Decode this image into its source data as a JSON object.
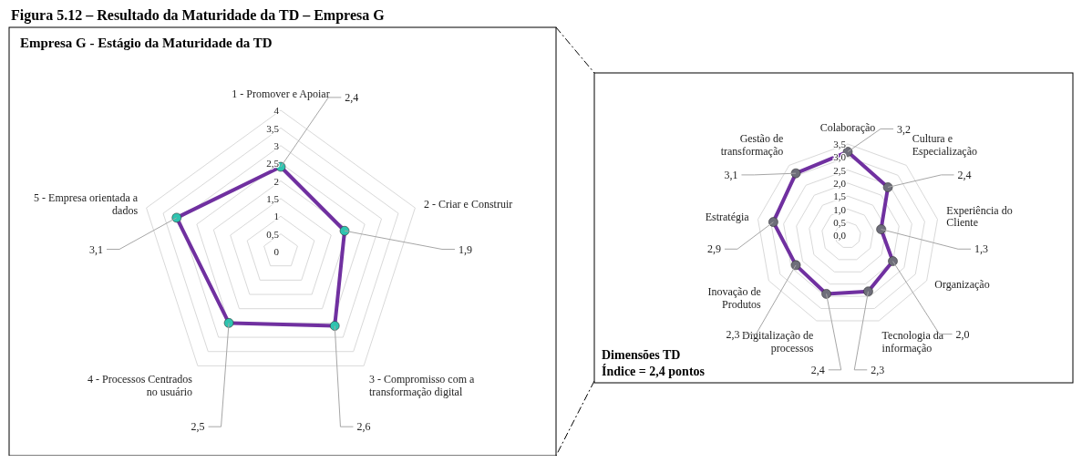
{
  "chart_data": [
    {
      "type": "radar",
      "title": "Empresa G - Estágio da Maturidade da TD",
      "annotations": [
        "Figura 5.12 – Resultado da Maturidade da TD – Empresa G"
      ],
      "categories": [
        "1 - Promover e Apoiar",
        "2 - Criar e Construir",
        "3 - Compromisso com a transformação digital",
        "4 - Processos Centrados no usuário",
        "5 - Empresa orientada a dados"
      ],
      "series": [
        {
          "color": "#7030a0",
          "colors": [
            "#2ec4b0",
            "#2ec4b0",
            "#2ec4b0",
            "#2ec4b0",
            "#2ec4b0"
          ],
          "values": [
            2.4,
            1.9,
            2.6,
            2.5,
            3.1
          ],
          "value_labels": [
            "2,4",
            "1,9",
            "2,6",
            "2,5",
            "3,1"
          ]
        }
      ],
      "ylim": [
        0,
        4
      ],
      "yticks": [
        {
          "value": 0,
          "label": "0"
        },
        {
          "value": 0.5,
          "label": "0,5"
        },
        {
          "value": 1,
          "label": "1"
        },
        {
          "value": 1.5,
          "label": "1,5"
        },
        {
          "value": 2,
          "label": "2"
        },
        {
          "value": 2.5,
          "label": "2,5"
        },
        {
          "value": 3,
          "label": "3"
        },
        {
          "value": 3.5,
          "label": "3,5"
        },
        {
          "value": 4,
          "label": "4"
        }
      ],
      "grid": true,
      "marker": "circle"
    },
    {
      "type": "radar",
      "annotations": [
        "Dimensões TD",
        "Índice = 2,4 pontos"
      ],
      "categories": [
        "Colaboração",
        "Cultura e Especialização",
        "Experiência do Cliente",
        "Organização",
        "Tecnologia da informação",
        "Digitalização de processos",
        "Inovação de Produtos",
        "Estratégia",
        "Gestão de transformação"
      ],
      "series": [
        {
          "color": "#7030a0",
          "colors": [
            "#6e6e7a",
            "#6e6e7a",
            "#6e6e7a",
            "#6e6e7a",
            "#6e6e7a",
            "#6e6e7a",
            "#6e6e7a",
            "#6e6e7a",
            "#6e6e7a"
          ],
          "values": [
            3.2,
            2.4,
            1.3,
            2.0,
            2.3,
            2.4,
            2.3,
            2.9,
            3.1
          ],
          "value_labels": [
            "3,2",
            "2,4",
            "1,3",
            "2,0",
            "2,3",
            "2,4",
            "2,3",
            "2,9",
            "3,1"
          ]
        }
      ],
      "ylim": [
        0,
        3.5
      ],
      "yticks": [
        {
          "value": 0,
          "label": "0,0"
        },
        {
          "value": 0.5,
          "label": "0,5"
        },
        {
          "value": 1,
          "label": "1,0"
        },
        {
          "value": 1.5,
          "label": "1,5"
        },
        {
          "value": 2,
          "label": "2,0"
        },
        {
          "value": 2.5,
          "label": "2,5"
        },
        {
          "value": 3,
          "label": "3,0"
        },
        {
          "value": 3.5,
          "label": "3,5"
        }
      ],
      "grid": true,
      "marker": "circle"
    }
  ]
}
